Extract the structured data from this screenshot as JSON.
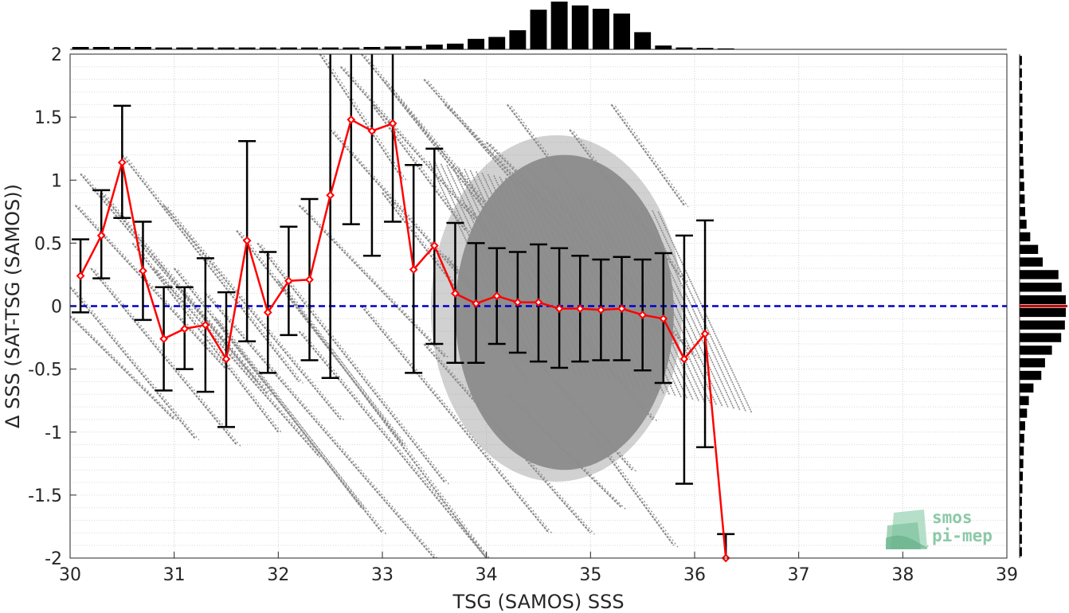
{
  "chart_data": {
    "type": "scatter",
    "xlabel": "TSG (SAMOS) SSS",
    "ylabel": "Δ SSS (SAT-TSG (SAMOS))",
    "xlim": [
      30,
      39
    ],
    "ylim": [
      -2,
      2
    ],
    "x_ticks": [
      "30",
      "31",
      "32",
      "33",
      "34",
      "35",
      "36",
      "37",
      "38",
      "39"
    ],
    "y_ticks": [
      "2",
      "1.5",
      "1",
      "0.5",
      "0",
      "-0.5",
      "-1",
      "-1.5",
      "-2"
    ],
    "grid": true,
    "zero_line": 0,
    "colors": {
      "scatter": "#8c8c8c",
      "mean_line": "#ff0000",
      "error_bars": "#000000",
      "zero_line": "#0000cc",
      "histogram": "#000000",
      "hist_mean": "#cc0000"
    },
    "binned_series": {
      "x": [
        30.1,
        30.3,
        30.5,
        30.7,
        30.9,
        31.1,
        31.3,
        31.5,
        31.7,
        31.9,
        32.1,
        32.3,
        32.5,
        32.7,
        32.9,
        33.1,
        33.3,
        33.5,
        33.7,
        33.9,
        34.1,
        34.3,
        34.5,
        34.7,
        34.9,
        35.1,
        35.3,
        35.5,
        35.7,
        35.9,
        36.1,
        36.3
      ],
      "mean": [
        0.24,
        0.56,
        1.14,
        0.28,
        -0.26,
        -0.18,
        -0.15,
        -0.42,
        0.52,
        -0.05,
        0.2,
        0.21,
        0.88,
        1.48,
        1.39,
        1.45,
        0.29,
        0.48,
        0.1,
        0.02,
        0.08,
        0.03,
        0.03,
        -0.02,
        -0.02,
        -0.03,
        -0.02,
        -0.07,
        -0.1,
        -0.42,
        -0.22,
        -2.0
      ],
      "upper": [
        0.53,
        0.92,
        1.59,
        0.67,
        0.15,
        0.15,
        0.38,
        0.11,
        1.31,
        0.43,
        0.63,
        0.85,
        2.0,
        2.0,
        2.0,
        2.0,
        1.12,
        1.25,
        0.66,
        0.5,
        0.46,
        0.43,
        0.49,
        0.46,
        0.4,
        0.37,
        0.39,
        0.37,
        0.42,
        0.56,
        0.68,
        -1.81
      ],
      "lower": [
        -0.05,
        0.22,
        0.7,
        -0.11,
        -0.67,
        -0.5,
        -0.68,
        -0.96,
        -0.28,
        -0.53,
        -0.23,
        -0.43,
        -0.57,
        0.65,
        0.4,
        0.67,
        -0.53,
        -0.3,
        -0.45,
        -0.45,
        -0.3,
        -0.37,
        -0.44,
        -0.49,
        -0.44,
        -0.43,
        -0.43,
        -0.51,
        -0.61,
        -1.41,
        -1.12,
        -2.0
      ]
    },
    "x_histogram": {
      "centers": [
        30.1,
        30.3,
        30.5,
        30.7,
        30.9,
        31.1,
        31.3,
        31.5,
        31.7,
        31.9,
        32.1,
        32.3,
        32.5,
        32.7,
        32.9,
        33.1,
        33.3,
        33.5,
        33.7,
        33.9,
        34.1,
        34.3,
        34.5,
        34.7,
        34.9,
        35.1,
        35.3,
        35.5,
        35.7,
        35.9,
        36.1,
        36.3
      ],
      "relative_counts": [
        0.05,
        0.05,
        0.05,
        0.05,
        0.04,
        0.04,
        0.04,
        0.04,
        0.04,
        0.04,
        0.04,
        0.04,
        0.04,
        0.04,
        0.05,
        0.06,
        0.07,
        0.1,
        0.12,
        0.22,
        0.26,
        0.4,
        0.83,
        1.0,
        0.92,
        0.85,
        0.75,
        0.36,
        0.08,
        0.04,
        0.03,
        0.02
      ]
    },
    "y_histogram": {
      "centers": [
        1.95,
        1.85,
        1.75,
        1.65,
        1.55,
        1.45,
        1.35,
        1.25,
        1.15,
        1.05,
        0.95,
        0.85,
        0.75,
        0.65,
        0.55,
        0.45,
        0.35,
        0.25,
        0.15,
        0.05,
        -0.05,
        -0.15,
        -0.25,
        -0.35,
        -0.45,
        -0.55,
        -0.65,
        -0.75,
        -0.85,
        -0.95,
        -1.05,
        -1.15,
        -1.25,
        -1.35,
        -1.45,
        -1.55,
        -1.65,
        -1.75,
        -1.85,
        -1.95
      ],
      "relative_counts": [
        0.05,
        0.05,
        0.05,
        0.06,
        0.06,
        0.06,
        0.07,
        0.07,
        0.08,
        0.09,
        0.1,
        0.11,
        0.12,
        0.15,
        0.23,
        0.4,
        0.5,
        0.84,
        0.91,
        1.0,
        1.0,
        0.98,
        0.9,
        0.7,
        0.55,
        0.47,
        0.3,
        0.2,
        0.16,
        0.12,
        0.1,
        0.09,
        0.08,
        0.07,
        0.06,
        0.05,
        0.05,
        0.05,
        0.05,
        0.05
      ]
    },
    "y_hist_mean": 0.0,
    "scatter_streaks": [
      [
        30.0,
        0.15,
        31.2,
        -1.05
      ],
      [
        30.0,
        -0.08,
        31.0,
        -0.9
      ],
      [
        30.05,
        0.8,
        31.5,
        -0.5
      ],
      [
        30.1,
        1.05,
        31.8,
        -0.6
      ],
      [
        30.3,
        0.9,
        31.9,
        -0.7
      ],
      [
        30.5,
        1.2,
        32.2,
        -0.6
      ],
      [
        30.6,
        0.5,
        32.0,
        -1.0
      ],
      [
        30.8,
        0.3,
        32.4,
        -1.2
      ],
      [
        31.0,
        0.3,
        33.0,
        -1.8
      ],
      [
        31.3,
        0.1,
        33.5,
        -2.0
      ],
      [
        31.6,
        0.6,
        33.2,
        -1.1
      ],
      [
        32.0,
        0.2,
        34.0,
        -2.0
      ],
      [
        32.2,
        0.8,
        33.6,
        -0.4
      ],
      [
        32.5,
        1.4,
        34.0,
        0.0
      ],
      [
        32.6,
        1.9,
        34.3,
        0.3
      ],
      [
        32.8,
        2.0,
        34.8,
        0.0
      ],
      [
        33.0,
        1.8,
        35.0,
        -0.3
      ],
      [
        32.4,
        2.0,
        33.2,
        1.0
      ],
      [
        32.9,
        1.6,
        33.8,
        0.6
      ],
      [
        33.4,
        1.8,
        35.2,
        0.1
      ],
      [
        33.6,
        1.6,
        35.8,
        -0.3
      ],
      [
        34.0,
        1.3,
        35.7,
        -0.1
      ],
      [
        34.4,
        1.1,
        36.0,
        -0.4
      ],
      [
        34.2,
        1.6,
        35.4,
        0.3
      ],
      [
        34.8,
        1.4,
        35.9,
        0.2
      ],
      [
        35.2,
        1.6,
        35.9,
        0.8
      ],
      [
        32.2,
        -0.2,
        34.0,
        -2.0
      ],
      [
        32.8,
        0.0,
        34.6,
        -1.8
      ],
      [
        33.4,
        -0.3,
        35.0,
        -1.8
      ],
      [
        33.6,
        0.4,
        35.4,
        -1.3
      ],
      [
        34.2,
        -0.7,
        35.3,
        -1.6
      ],
      [
        35.0,
        -1.0,
        35.8,
        -1.9
      ],
      [
        33.0,
        0.9,
        34.4,
        -0.6
      ],
      [
        33.8,
        0.8,
        35.6,
        -0.9
      ],
      [
        31.8,
        0.5,
        33.6,
        -1.4
      ],
      [
        31.4,
        -0.1,
        32.8,
        -1.6
      ],
      [
        30.9,
        0.8,
        32.6,
        -0.9
      ],
      [
        30.2,
        0.3,
        31.6,
        -1.1
      ]
    ],
    "scatter_core": {
      "x_center": 34.75,
      "y_center": -0.05,
      "x_radius": 1.05,
      "y_radius": 1.25
    },
    "logo": {
      "line1": "smos",
      "line2": "pi-mep"
    }
  }
}
